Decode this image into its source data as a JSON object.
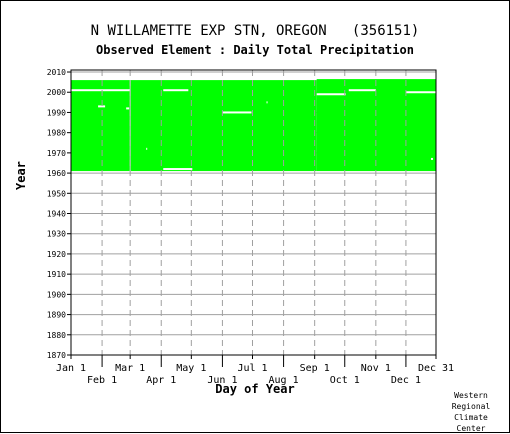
{
  "chart_data": {
    "type": "heatmap",
    "title": "N WILLAMETTE EXP STN, OREGON   (356151)",
    "subtitle": "Observed Element : Daily Total Precipitation",
    "xlabel": "Day of Year",
    "ylabel": "Year",
    "ylim": [
      1870,
      2011
    ],
    "y_ticks": [
      1870,
      1880,
      1890,
      1900,
      1910,
      1920,
      1930,
      1940,
      1950,
      1960,
      1970,
      1980,
      1990,
      2000,
      2010
    ],
    "x_ticks": [
      {
        "label": "Jan 1",
        "day": 1,
        "row": "top"
      },
      {
        "label": "Feb 1",
        "day": 32,
        "row": "bottom"
      },
      {
        "label": "Mar 1",
        "day": 60,
        "row": "top"
      },
      {
        "label": "Apr 1",
        "day": 91,
        "row": "bottom"
      },
      {
        "label": "May 1",
        "day": 121,
        "row": "top"
      },
      {
        "label": "Jun 1",
        "day": 152,
        "row": "bottom"
      },
      {
        "label": "Jul 1",
        "day": 182,
        "row": "top"
      },
      {
        "label": "Aug 1",
        "day": 213,
        "row": "bottom"
      },
      {
        "label": "Sep 1",
        "day": 244,
        "row": "top"
      },
      {
        "label": "Oct 1",
        "day": 274,
        "row": "bottom"
      },
      {
        "label": "Nov 1",
        "day": 305,
        "row": "top"
      },
      {
        "label": "Dec 1",
        "day": 335,
        "row": "bottom"
      },
      {
        "label": "Dec 31",
        "day": 365,
        "row": "top"
      }
    ],
    "coverage": {
      "color": "#00ff00",
      "blocks": [
        {
          "start_year": 1961,
          "end_year": 2006,
          "start_day": 1,
          "end_day": 246
        },
        {
          "start_year": 1961,
          "end_year": 2006.5,
          "start_day": 246,
          "end_day": 365
        }
      ],
      "gaps": [
        {
          "year": 2001,
          "start_day": 1,
          "end_day": 60
        },
        {
          "year": 2001,
          "start_day": 93,
          "end_day": 118
        },
        {
          "year": 1999,
          "start_day": 246,
          "end_day": 275
        },
        {
          "year": 2001,
          "start_day": 278,
          "end_day": 305
        },
        {
          "year": 2000,
          "start_day": 335,
          "end_day": 365
        },
        {
          "year": 1993,
          "start_day": 28,
          "end_day": 35
        },
        {
          "year": 1992,
          "start_day": 56,
          "end_day": 59
        },
        {
          "year": 1990,
          "start_day": 152,
          "end_day": 181
        },
        {
          "year": 1995,
          "start_day": 196,
          "end_day": 197
        },
        {
          "year": 1972,
          "start_day": 76,
          "end_day": 77
        },
        {
          "year": 1962,
          "start_day": 93,
          "end_day": 122
        },
        {
          "year": 1967,
          "start_day": 360,
          "end_day": 362
        }
      ],
      "dividers_day": [
        60
      ]
    },
    "grid": true,
    "legend": "none"
  },
  "credit": "Western\nRegional\nClimate\nCenter"
}
